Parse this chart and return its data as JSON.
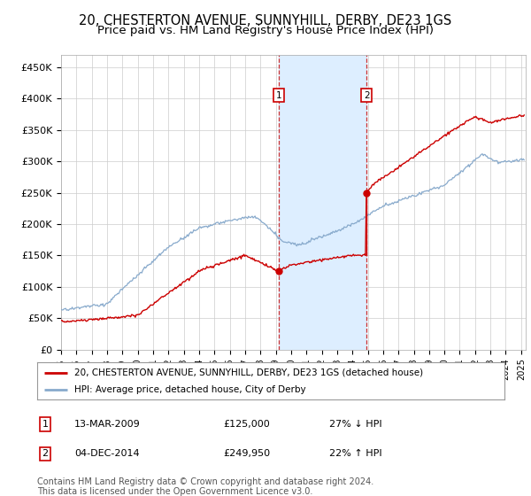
{
  "title": "20, CHESTERTON AVENUE, SUNNYHILL, DERBY, DE23 1GS",
  "subtitle": "Price paid vs. HM Land Registry's House Price Index (HPI)",
  "title_fontsize": 10.5,
  "subtitle_fontsize": 9.5,
  "ylabel_ticks": [
    "£0",
    "£50K",
    "£100K",
    "£150K",
    "£200K",
    "£250K",
    "£300K",
    "£350K",
    "£400K",
    "£450K"
  ],
  "ytick_values": [
    0,
    50000,
    100000,
    150000,
    200000,
    250000,
    300000,
    350000,
    400000,
    450000
  ],
  "ylim": [
    0,
    470000
  ],
  "xlim_start": 1995.0,
  "xlim_end": 2025.3,
  "grid_color": "#cccccc",
  "background_color": "#ffffff",
  "red_line_color": "#cc0000",
  "blue_line_color": "#88aacc",
  "shade_color": "#ddeeff",
  "transaction1": {
    "date_label": "13-MAR-2009",
    "x": 2009.2,
    "price": 125000,
    "label": "27% ↓ HPI"
  },
  "transaction2": {
    "date_label": "04-DEC-2014",
    "x": 2014.92,
    "price": 249950,
    "label": "22% ↑ HPI"
  },
  "legend_label_red": "20, CHESTERTON AVENUE, SUNNYHILL, DERBY, DE23 1GS (detached house)",
  "legend_label_blue": "HPI: Average price, detached house, City of Derby",
  "footnote": "Contains HM Land Registry data © Crown copyright and database right 2024.\nThis data is licensed under the Open Government Licence v3.0.",
  "footnote_fontsize": 7.0
}
